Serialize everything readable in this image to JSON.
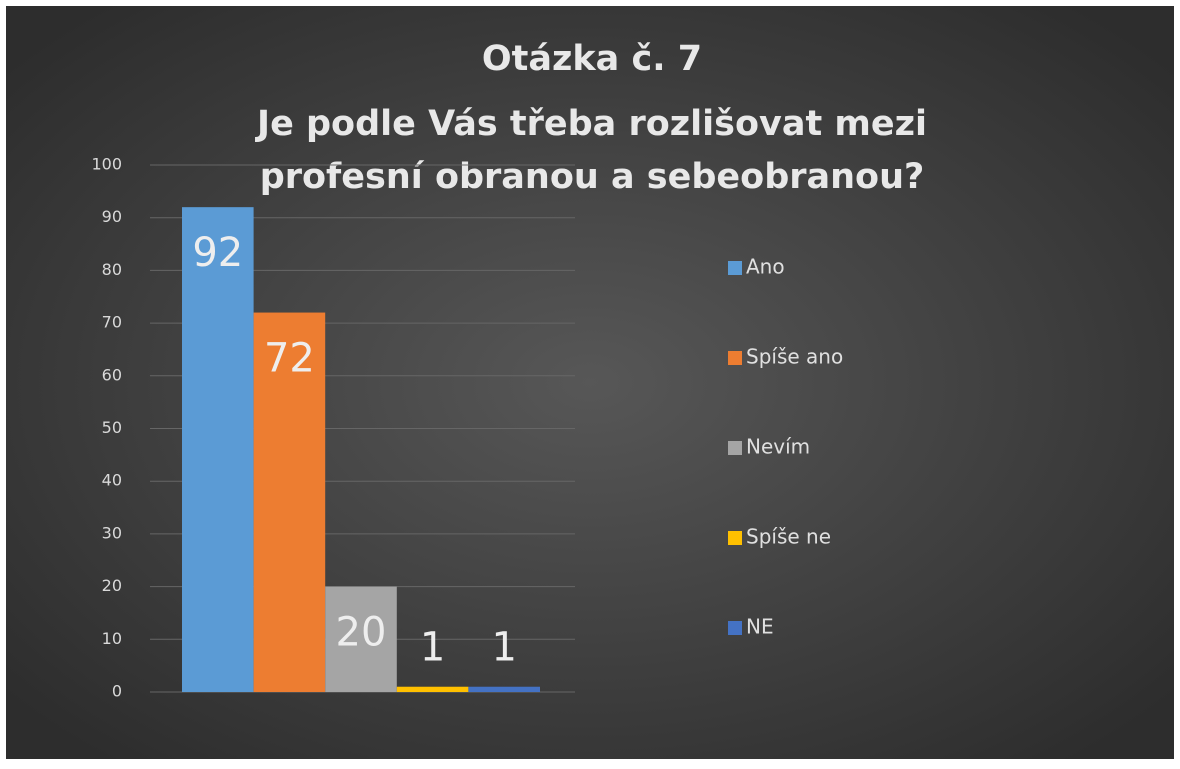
{
  "chart_data": {
    "type": "bar",
    "title": [
      "Otázka č. 7",
      "Je podle Vás třeba rozlišovat mezi",
      "profesní obranou a sebeobranou?"
    ],
    "series": [
      {
        "name": "Ano",
        "color": "#5b9bd5",
        "values": [
          92
        ]
      },
      {
        "name": "Spíše ano",
        "color": "#ed7d31",
        "values": [
          72
        ]
      },
      {
        "name": "Nevím",
        "color": "#a5a5a5",
        "values": [
          20
        ]
      },
      {
        "name": "Spíše ne",
        "color": "#ffc000",
        "values": [
          1
        ]
      },
      {
        "name": "NE",
        "color": "#4472c4",
        "values": [
          1
        ]
      }
    ],
    "ylim": [
      0,
      100
    ],
    "yticks": [
      0,
      10,
      20,
      30,
      40,
      50,
      60,
      70,
      80,
      90,
      100
    ],
    "grid": true,
    "legend": "right"
  }
}
